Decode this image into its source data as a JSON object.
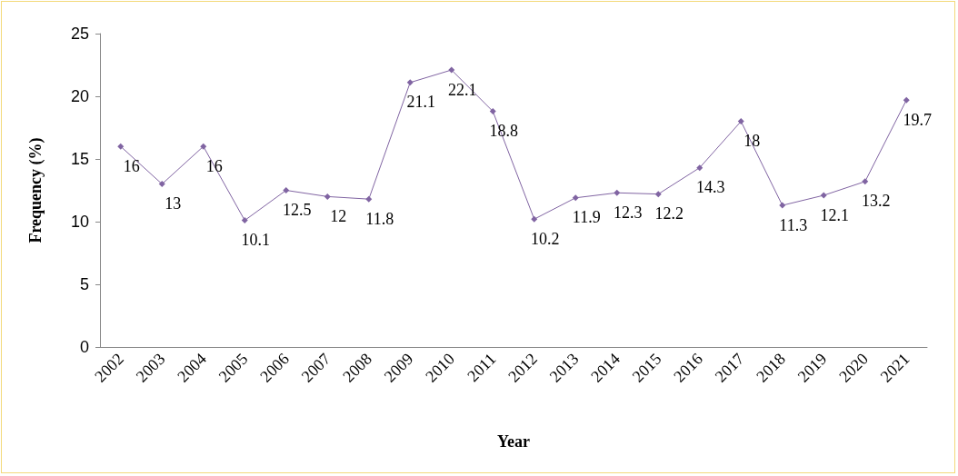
{
  "chart_data": {
    "type": "line",
    "xlabel": "Year",
    "ylabel": "Frequency (%)",
    "categories": [
      "2002",
      "2003",
      "2004",
      "2005",
      "2006",
      "2007",
      "2008",
      "2009",
      "2010",
      "2011",
      "2012",
      "2013",
      "2014",
      "2015",
      "2016",
      "2017",
      "2018",
      "2019",
      "2020",
      "2021"
    ],
    "series": [
      {
        "color": "#8064a2",
        "values": [
          16,
          13,
          16,
          10.1,
          12.5,
          12,
          11.8,
          21.1,
          22.1,
          18.8,
          10.2,
          11.9,
          12.3,
          12.2,
          14.3,
          18,
          11.3,
          12.1,
          13.2,
          19.7
        ]
      }
    ],
    "ylim": [
      0,
      25
    ],
    "yticks": [
      0,
      5,
      10,
      15,
      20,
      25
    ],
    "grid": false,
    "marker": "diamond",
    "line_style": "solid",
    "data_labels": true
  }
}
